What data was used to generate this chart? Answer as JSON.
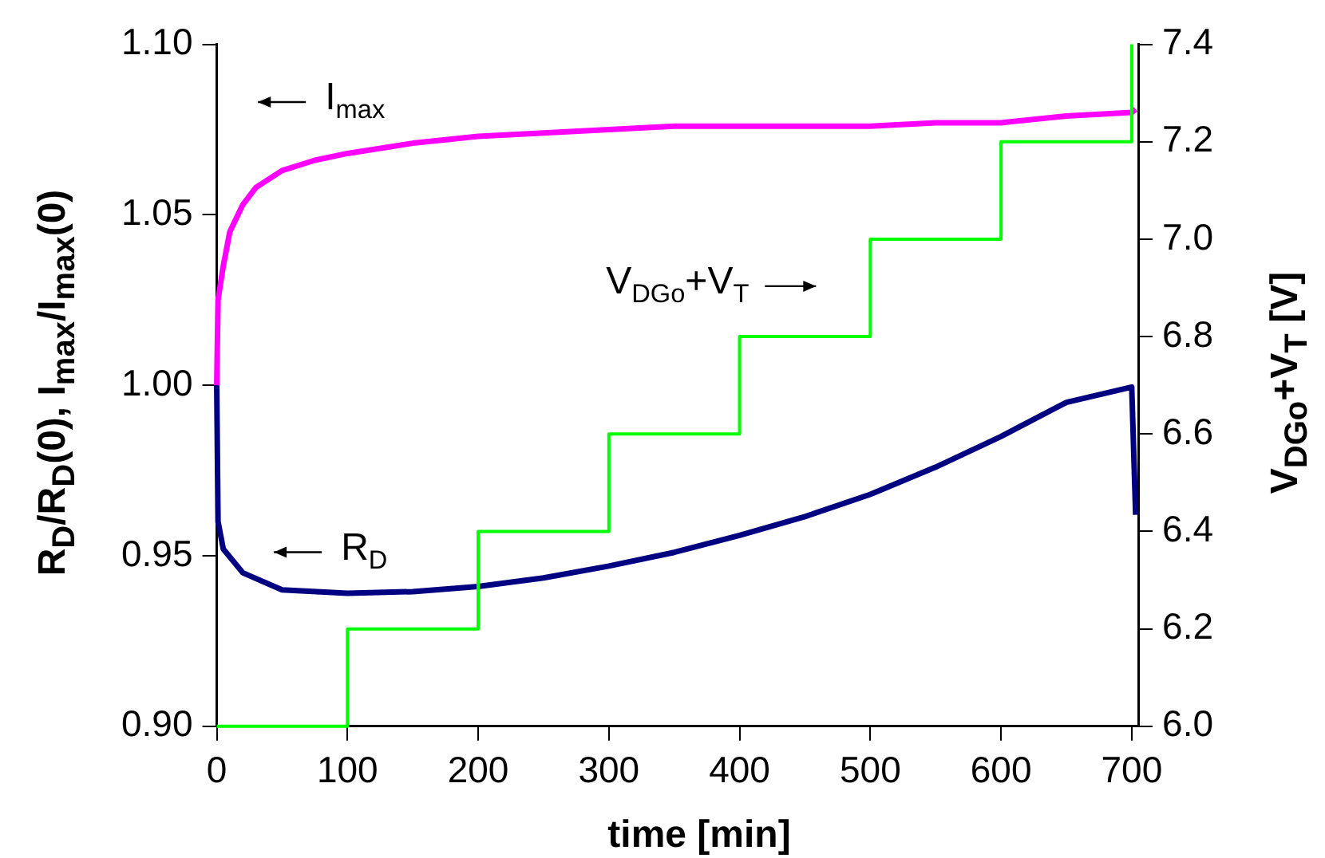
{
  "chart_data": {
    "type": "line",
    "xlabel": "time [min]",
    "ylabel": "R$_{D}$/R$_{D}$(0), I$_{max}$/I$_{max}$(0)",
    "y2label": "V$_{DGo}$+V$_{T}$ [V]",
    "xlim": [
      0,
      705
    ],
    "xticks": [
      0,
      100,
      200,
      300,
      400,
      500,
      600,
      700
    ],
    "ylim": [
      0.9,
      1.1
    ],
    "yticks": [
      {
        "value": 0.9,
        "label": "0.90"
      },
      {
        "value": 0.95,
        "label": "0.95"
      },
      {
        "value": 1.0,
        "label": "1.00"
      },
      {
        "value": 1.05,
        "label": "1.05"
      },
      {
        "value": 1.1,
        "label": "1.10"
      }
    ],
    "y2lim": [
      6.0,
      7.4
    ],
    "y2ticks": [
      {
        "value": 6.0,
        "label": "6.0"
      },
      {
        "value": 6.2,
        "label": "6.2"
      },
      {
        "value": 6.4,
        "label": "6.4"
      },
      {
        "value": 6.6,
        "label": "6.6"
      },
      {
        "value": 6.8,
        "label": "6.8"
      },
      {
        "value": 7.0,
        "label": "7.0"
      },
      {
        "value": 7.2,
        "label": "7.2"
      },
      {
        "value": 7.4,
        "label": "7.4"
      }
    ],
    "grid": false,
    "legend": false,
    "marker": "none",
    "line_style": "solid",
    "series": [
      {
        "type": "line",
        "color": "#ff00ff",
        "x": [
          0,
          1,
          5,
          10,
          20,
          30,
          50,
          75,
          100,
          150,
          200,
          250,
          300,
          350,
          400,
          450,
          500,
          550,
          600,
          650,
          700,
          703
        ],
        "values": [
          1.0,
          1.025,
          1.035,
          1.045,
          1.053,
          1.058,
          1.063,
          1.066,
          1.068,
          1.071,
          1.073,
          1.074,
          1.075,
          1.076,
          1.076,
          1.076,
          1.076,
          1.077,
          1.077,
          1.079,
          1.08,
          1.081
        ]
      },
      {
        "type": "line",
        "color": "#000080",
        "x": [
          0,
          1,
          5,
          20,
          50,
          100,
          150,
          200,
          250,
          300,
          350,
          400,
          450,
          500,
          550,
          600,
          650,
          700,
          703
        ],
        "values": [
          1.0,
          0.96,
          0.952,
          0.945,
          0.94,
          0.939,
          0.9395,
          0.941,
          0.9435,
          0.947,
          0.951,
          0.956,
          0.9615,
          0.968,
          0.976,
          0.985,
          0.995,
          0.9995,
          0.962
        ]
      },
      {
        "type": "step",
        "axis": "y2",
        "color": "#00ff00",
        "x": [
          0,
          100,
          200,
          300,
          400,
          500,
          600,
          700
        ],
        "values": [
          6.0,
          6.2,
          6.4,
          6.6,
          6.8,
          7.0,
          7.2,
          7.4
        ]
      }
    ],
    "annotations": [
      "I$_{max}$",
      "R$_{D}$",
      "V$_{DGo}$+V$_{T}$"
    ]
  }
}
